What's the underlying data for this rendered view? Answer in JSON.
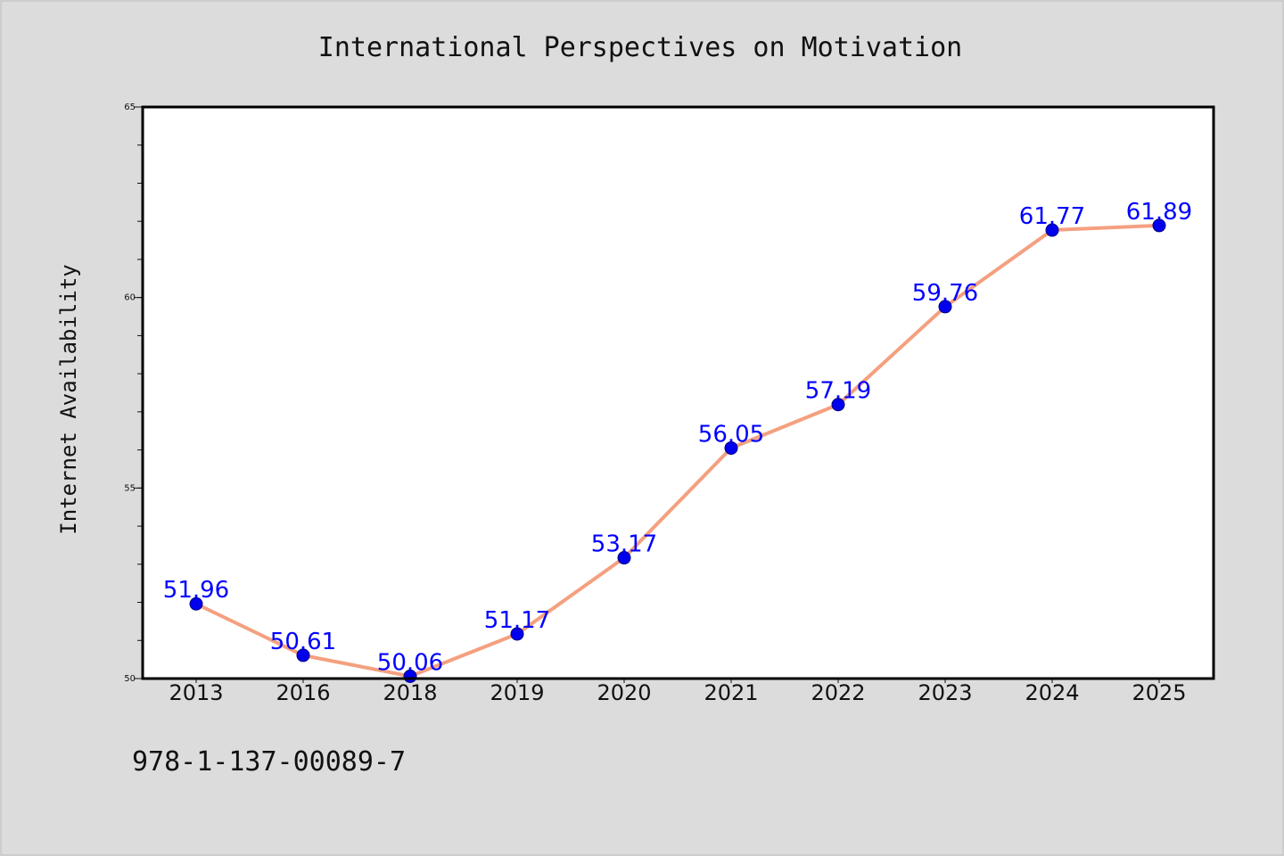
{
  "chart_data": {
    "type": "line",
    "title": "International Perspectives on Motivation",
    "xlabel": "",
    "ylabel": "Internet Availability",
    "categories": [
      "2013",
      "2016",
      "2018",
      "2019",
      "2020",
      "2021",
      "2022",
      "2023",
      "2024",
      "2025"
    ],
    "series": [
      {
        "values": [
          51.96,
          50.61,
          50.06,
          51.17,
          53.17,
          56.05,
          57.19,
          59.76,
          61.77,
          61.89
        ]
      }
    ],
    "data_labels": [
      "51.96",
      "50.61",
      "50.06",
      "51.17",
      "53.17",
      "56.05",
      "57.19",
      "59.76",
      "61.77",
      "61.89"
    ],
    "ylim": [
      50,
      65
    ],
    "yticks": [
      "50",
      "55",
      "60",
      "65"
    ],
    "yminor_step": 1,
    "grid": false,
    "legend": "none",
    "colors": {
      "line": "#f4a07f",
      "marker": "#0000ee",
      "label": "#0000ff",
      "background": "#dcdcdc",
      "plot_background": "#ffffff",
      "frame": "#000000"
    }
  },
  "footer": {
    "isbn": "978-1-137-00089-7"
  }
}
